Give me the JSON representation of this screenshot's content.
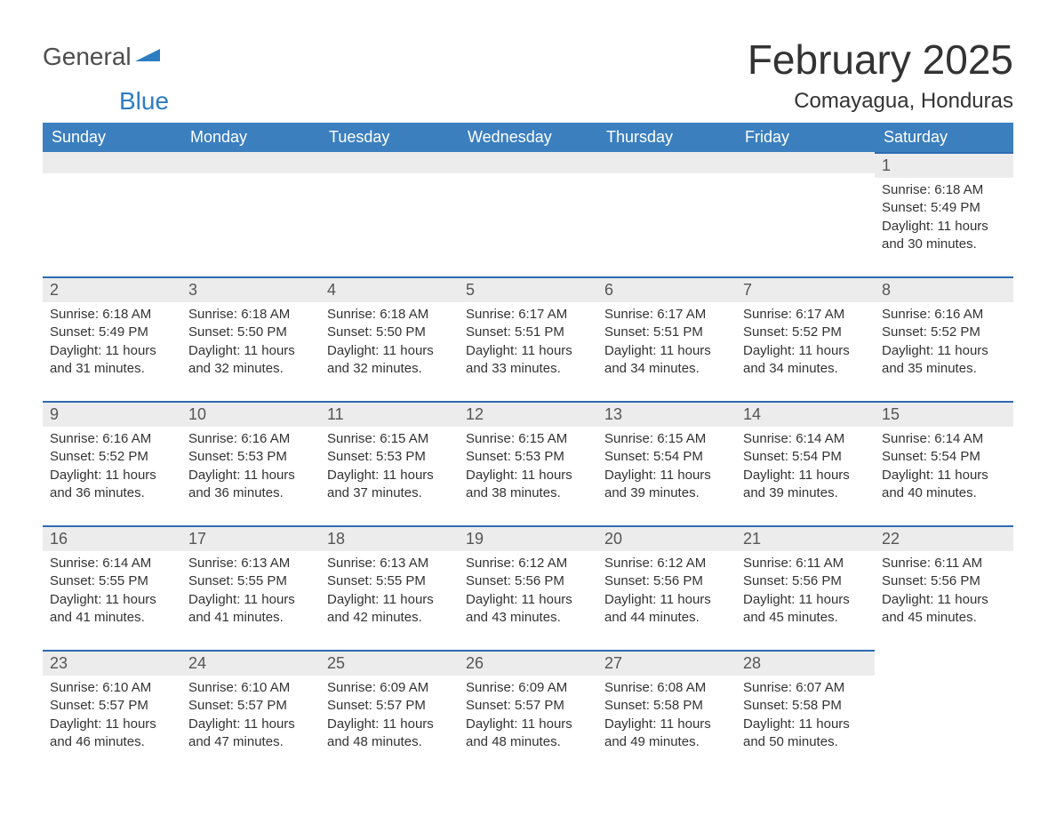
{
  "logo": {
    "word1": "General",
    "word2": "Blue"
  },
  "title": "February 2025",
  "subtitle": "Comayagua, Honduras",
  "theme": {
    "header_bg": "#3b7fbf",
    "header_text": "#ffffff",
    "band_bg": "#ececec",
    "band_border": "#2e6ab0",
    "body_text": "#333333",
    "logo_grey": "#4d4d4d",
    "logo_blue": "#2e7dc1",
    "title_fontsize": 46,
    "subtitle_fontsize": 24,
    "header_fontsize": 18,
    "cell_fontsize": 15
  },
  "columns": [
    "Sunday",
    "Monday",
    "Tuesday",
    "Wednesday",
    "Thursday",
    "Friday",
    "Saturday"
  ],
  "weeks": [
    [
      null,
      null,
      null,
      null,
      null,
      null,
      {
        "n": "1",
        "sr": "6:18 AM",
        "ss": "5:49 PM",
        "dl": "11 hours and 30 minutes."
      }
    ],
    [
      {
        "n": "2",
        "sr": "6:18 AM",
        "ss": "5:49 PM",
        "dl": "11 hours and 31 minutes."
      },
      {
        "n": "3",
        "sr": "6:18 AM",
        "ss": "5:50 PM",
        "dl": "11 hours and 32 minutes."
      },
      {
        "n": "4",
        "sr": "6:18 AM",
        "ss": "5:50 PM",
        "dl": "11 hours and 32 minutes."
      },
      {
        "n": "5",
        "sr": "6:17 AM",
        "ss": "5:51 PM",
        "dl": "11 hours and 33 minutes."
      },
      {
        "n": "6",
        "sr": "6:17 AM",
        "ss": "5:51 PM",
        "dl": "11 hours and 34 minutes."
      },
      {
        "n": "7",
        "sr": "6:17 AM",
        "ss": "5:52 PM",
        "dl": "11 hours and 34 minutes."
      },
      {
        "n": "8",
        "sr": "6:16 AM",
        "ss": "5:52 PM",
        "dl": "11 hours and 35 minutes."
      }
    ],
    [
      {
        "n": "9",
        "sr": "6:16 AM",
        "ss": "5:52 PM",
        "dl": "11 hours and 36 minutes."
      },
      {
        "n": "10",
        "sr": "6:16 AM",
        "ss": "5:53 PM",
        "dl": "11 hours and 36 minutes."
      },
      {
        "n": "11",
        "sr": "6:15 AM",
        "ss": "5:53 PM",
        "dl": "11 hours and 37 minutes."
      },
      {
        "n": "12",
        "sr": "6:15 AM",
        "ss": "5:53 PM",
        "dl": "11 hours and 38 minutes."
      },
      {
        "n": "13",
        "sr": "6:15 AM",
        "ss": "5:54 PM",
        "dl": "11 hours and 39 minutes."
      },
      {
        "n": "14",
        "sr": "6:14 AM",
        "ss": "5:54 PM",
        "dl": "11 hours and 39 minutes."
      },
      {
        "n": "15",
        "sr": "6:14 AM",
        "ss": "5:54 PM",
        "dl": "11 hours and 40 minutes."
      }
    ],
    [
      {
        "n": "16",
        "sr": "6:14 AM",
        "ss": "5:55 PM",
        "dl": "11 hours and 41 minutes."
      },
      {
        "n": "17",
        "sr": "6:13 AM",
        "ss": "5:55 PM",
        "dl": "11 hours and 41 minutes."
      },
      {
        "n": "18",
        "sr": "6:13 AM",
        "ss": "5:55 PM",
        "dl": "11 hours and 42 minutes."
      },
      {
        "n": "19",
        "sr": "6:12 AM",
        "ss": "5:56 PM",
        "dl": "11 hours and 43 minutes."
      },
      {
        "n": "20",
        "sr": "6:12 AM",
        "ss": "5:56 PM",
        "dl": "11 hours and 44 minutes."
      },
      {
        "n": "21",
        "sr": "6:11 AM",
        "ss": "5:56 PM",
        "dl": "11 hours and 45 minutes."
      },
      {
        "n": "22",
        "sr": "6:11 AM",
        "ss": "5:56 PM",
        "dl": "11 hours and 45 minutes."
      }
    ],
    [
      {
        "n": "23",
        "sr": "6:10 AM",
        "ss": "5:57 PM",
        "dl": "11 hours and 46 minutes."
      },
      {
        "n": "24",
        "sr": "6:10 AM",
        "ss": "5:57 PM",
        "dl": "11 hours and 47 minutes."
      },
      {
        "n": "25",
        "sr": "6:09 AM",
        "ss": "5:57 PM",
        "dl": "11 hours and 48 minutes."
      },
      {
        "n": "26",
        "sr": "6:09 AM",
        "ss": "5:57 PM",
        "dl": "11 hours and 48 minutes."
      },
      {
        "n": "27",
        "sr": "6:08 AM",
        "ss": "5:58 PM",
        "dl": "11 hours and 49 minutes."
      },
      {
        "n": "28",
        "sr": "6:07 AM",
        "ss": "5:58 PM",
        "dl": "11 hours and 50 minutes."
      },
      null
    ]
  ],
  "labels": {
    "sunrise": "Sunrise: ",
    "sunset": "Sunset: ",
    "daylight": "Daylight: "
  }
}
